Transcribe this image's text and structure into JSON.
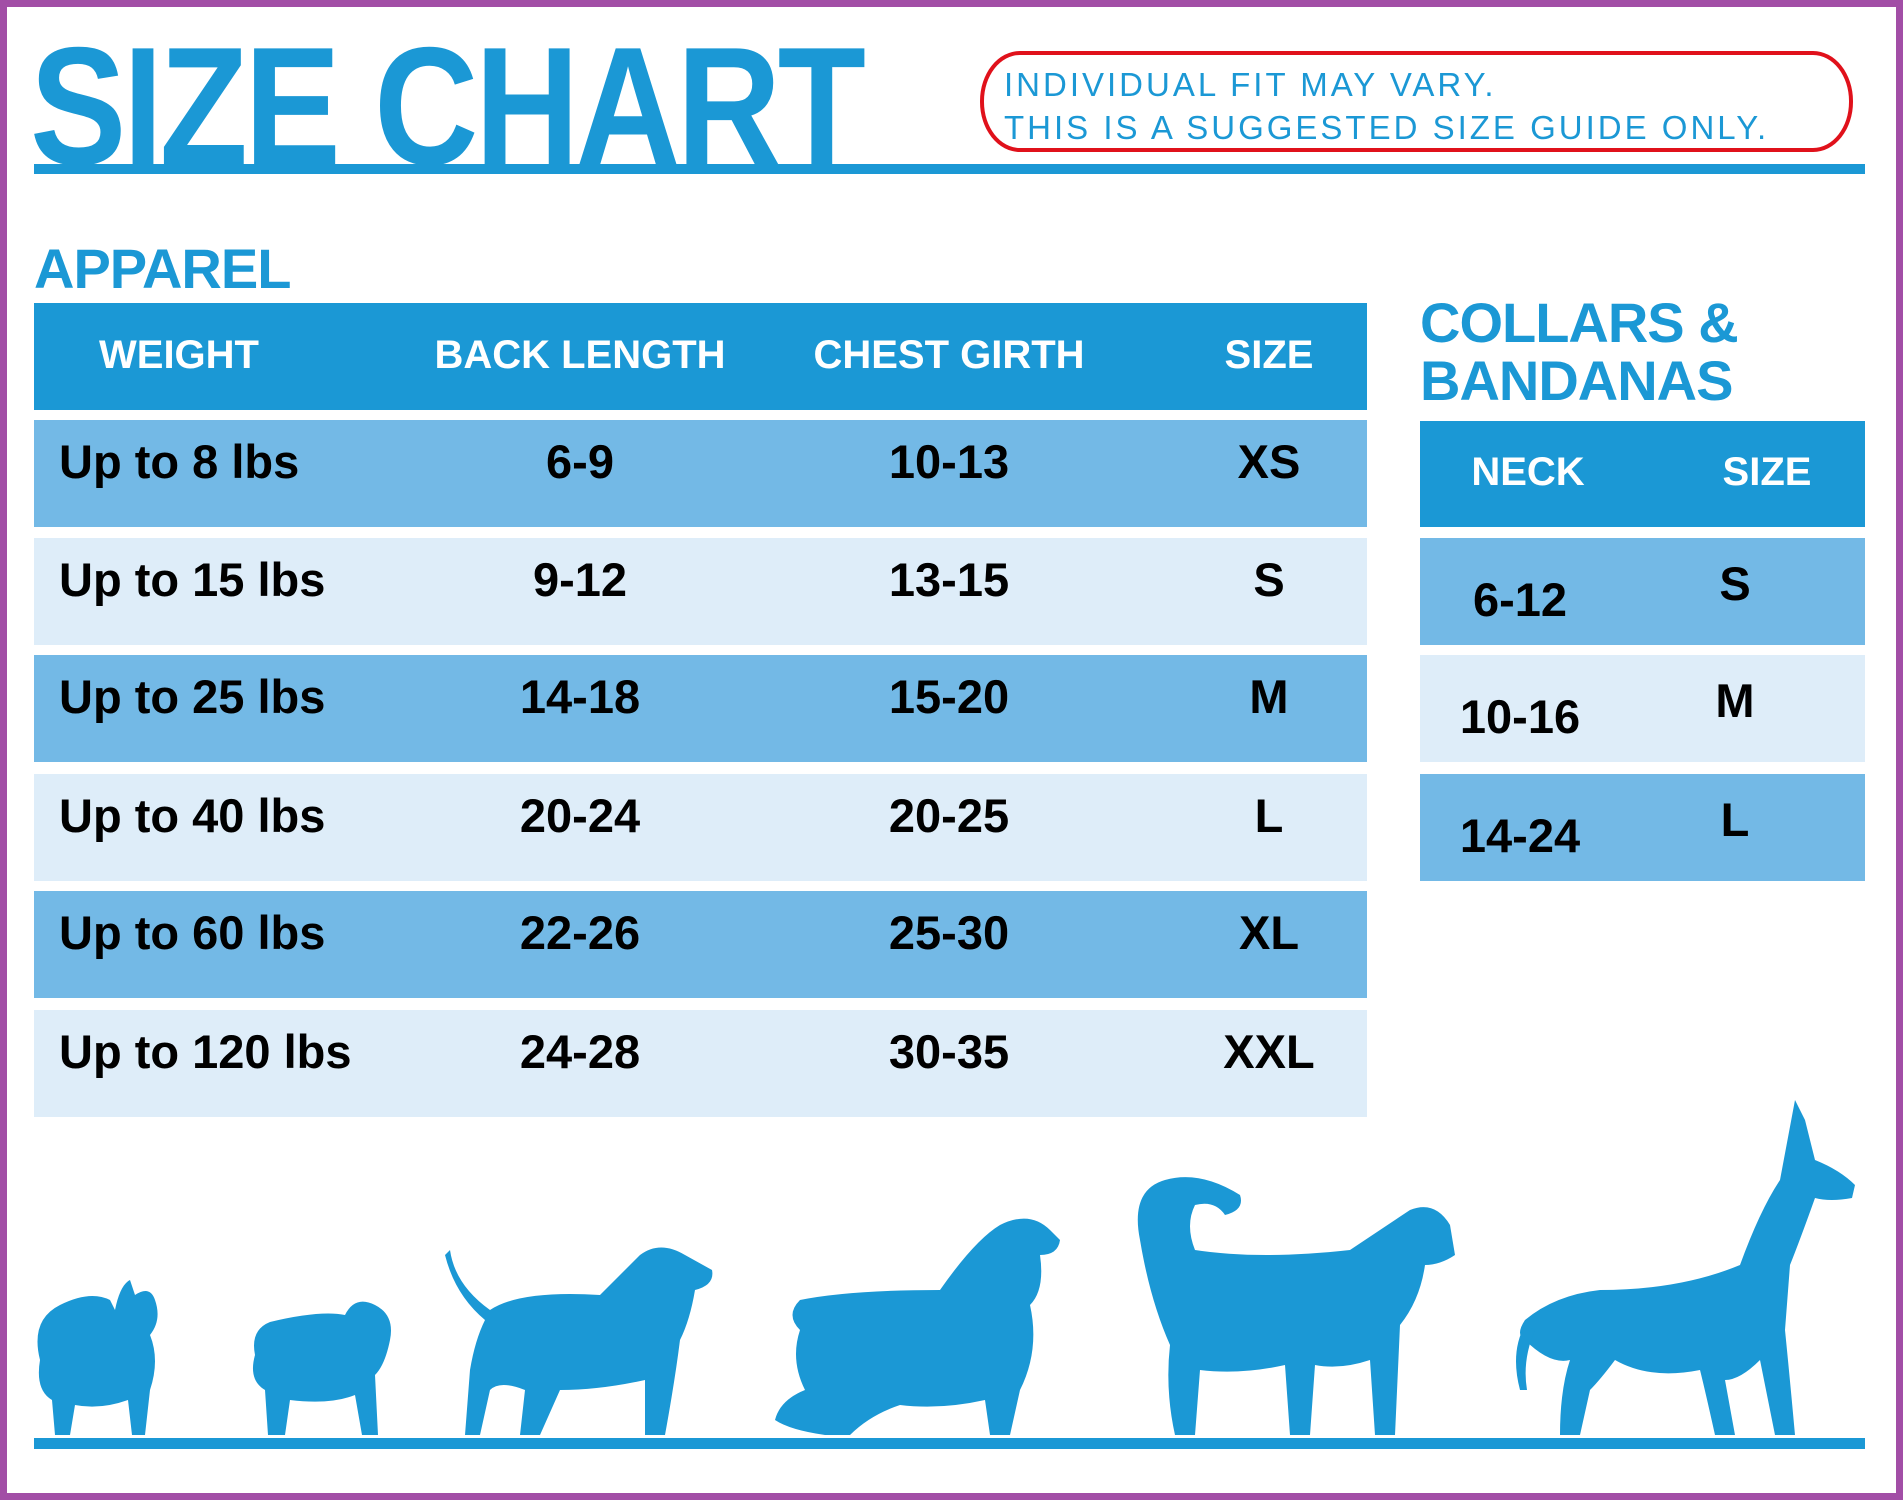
{
  "title": "SIZE CHART",
  "notice": [
    "INDIVIDUAL FIT MAY VARY.",
    "THIS IS A SUGGESTED SIZE GUIDE ONLY."
  ],
  "apparel": {
    "heading": "APPAREL",
    "columns": [
      "WEIGHT",
      "BACK LENGTH",
      "CHEST GIRTH",
      "SIZE"
    ],
    "rows": [
      [
        "Up to 8 lbs",
        "6-9",
        "10-13",
        "XS"
      ],
      [
        "Up to 15 lbs",
        "9-12",
        "13-15",
        "S"
      ],
      [
        "Up to 25 lbs",
        "14-18",
        "15-20",
        "M"
      ],
      [
        "Up to 40 lbs",
        "20-24",
        "20-25",
        "L"
      ],
      [
        "Up to 60 lbs",
        "22-26",
        "25-30",
        "XL"
      ],
      [
        "Up to 120 lbs",
        "24-28",
        "30-35",
        "XXL"
      ]
    ]
  },
  "collars": {
    "heading_line1": "COLLARS &",
    "heading_line2": "BANDANAS",
    "columns": [
      "NECK",
      "SIZE"
    ],
    "rows": [
      [
        "6-12",
        "S"
      ],
      [
        "10-16",
        "M"
      ],
      [
        "14-24",
        "L"
      ]
    ]
  },
  "colors": {
    "brand_blue": "#1b98d5",
    "row_dark": "#73b9e6",
    "row_light": "#deedf9",
    "notice_border": "#e0111b",
    "frame": "#a24ea6"
  },
  "icons": [
    "pomeranian-silhouette-icon",
    "pug-silhouette-icon",
    "beagle-silhouette-icon",
    "spaniel-silhouette-icon",
    "husky-silhouette-icon",
    "great-dane-silhouette-icon"
  ]
}
